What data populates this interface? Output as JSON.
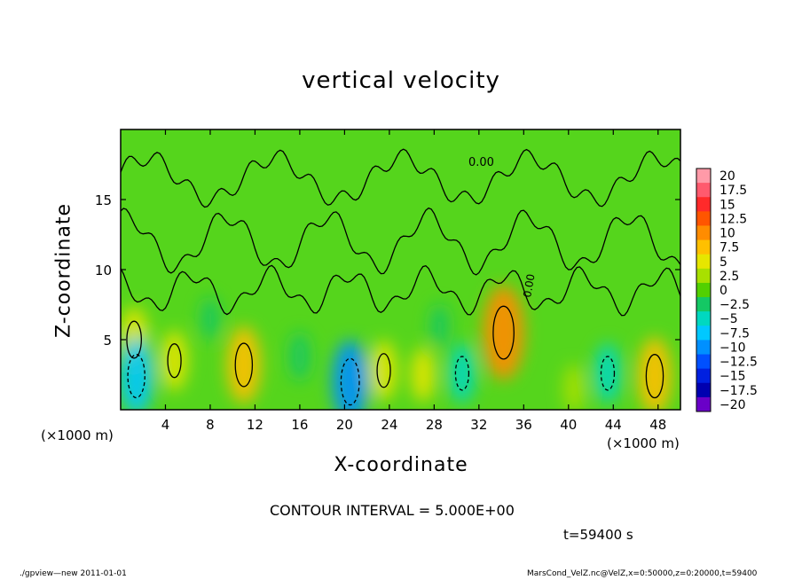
{
  "chart_data": {
    "type": "heatmap",
    "title": "vertical velocity",
    "xlabel": "X-coordinate",
    "ylabel": "Z-coordinate",
    "xunit": "(×1000 m)",
    "xunit_right": "(×1000 m)",
    "xlim": [
      0,
      50
    ],
    "ylim": [
      0,
      20
    ],
    "xticks": [
      "4",
      "8",
      "12",
      "16",
      "20",
      "24",
      "28",
      "32",
      "36",
      "40",
      "44",
      "48"
    ],
    "xtick_values": [
      4,
      8,
      12,
      16,
      20,
      24,
      28,
      32,
      36,
      40,
      44,
      48
    ],
    "yticks": [
      "5",
      "10",
      "15"
    ],
    "ytick_values": [
      5,
      10,
      15
    ],
    "contour_label": "0.00",
    "colorbar_labels": [
      "20",
      "17.5",
      "15",
      "12.5",
      "10",
      "7.5",
      "5",
      "2.5",
      "0",
      "−2.5",
      "−5",
      "−7.5",
      "−10",
      "−12.5",
      "−15",
      "−17.5",
      "−20"
    ],
    "colorbar_values": [
      20,
      17.5,
      15,
      12.5,
      10,
      7.5,
      5,
      2.5,
      0,
      -2.5,
      -5,
      -7.5,
      -10,
      -12.5,
      -15,
      -17.5,
      -20
    ],
    "colorbar_colors": [
      "#ff9aa8",
      "#ff5a6e",
      "#ff2a2a",
      "#ff5500",
      "#ff8c00",
      "#ffc000",
      "#e6e600",
      "#a8e000",
      "#52d000",
      "#14c864",
      "#00d8c0",
      "#00c8ff",
      "#0090ff",
      "#0050ff",
      "#0020e0",
      "#0000b0",
      "#6a00c8"
    ],
    "updrafts": [
      {
        "x": 1.2,
        "z": 5.0,
        "w": 6
      },
      {
        "x": 4.8,
        "z": 3.5,
        "w": 5
      },
      {
        "x": 11.0,
        "z": 3.2,
        "w": 8
      },
      {
        "x": 23.5,
        "z": 2.8,
        "w": 5
      },
      {
        "x": 27.0,
        "z": 2.5,
        "w": 4
      },
      {
        "x": 34.2,
        "z": 5.5,
        "w": 11
      },
      {
        "x": 47.7,
        "z": 2.4,
        "w": 8
      },
      {
        "x": 40.5,
        "z": 1.5,
        "w": 3
      }
    ],
    "downdrafts": [
      {
        "x": 1.4,
        "z": 2.4,
        "w": -8
      },
      {
        "x": 20.5,
        "z": 2.0,
        "w": -9
      },
      {
        "x": 30.5,
        "z": 2.6,
        "w": -5
      },
      {
        "x": 43.5,
        "z": 2.6,
        "w": -5
      },
      {
        "x": 16.0,
        "z": 3.8,
        "w": -3
      },
      {
        "x": 8.0,
        "z": 6.5,
        "w": -2
      },
      {
        "x": 28.5,
        "z": 6.0,
        "w": -2
      }
    ],
    "contour_interval": "CONTOUR INTERVAL = 5.000E+00",
    "time": "t=59400 s"
  },
  "footer": {
    "left": "./gpview—new   2011-01-01",
    "right": "MarsCond_VelZ.nc@VelZ,x=0:50000,z=0:20000,t=59400"
  }
}
